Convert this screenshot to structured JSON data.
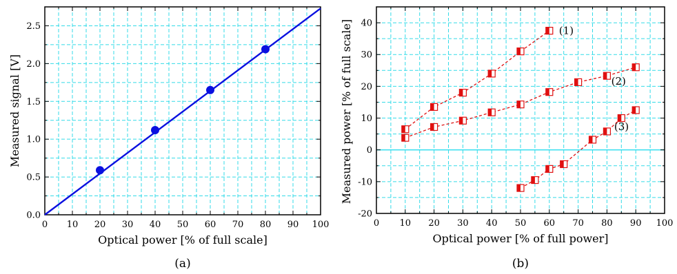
{
  "chart_data": [
    {
      "type": "scatter",
      "panel_label": "(a)",
      "xlabel": "Optical power [% of full scale]",
      "ylabel": "Measured signal [V]",
      "xlim": [
        0,
        100
      ],
      "ylim": [
        0,
        2.75
      ],
      "xticks": [
        "0",
        "10",
        "20",
        "30",
        "40",
        "50",
        "60",
        "70",
        "80",
        "90",
        "100"
      ],
      "yticks": [
        "0.0",
        "0.5",
        "1.0",
        "1.5",
        "2.0",
        "2.5"
      ],
      "grid": true,
      "series": [
        {
          "x": [
            20,
            40,
            60,
            80
          ],
          "y": [
            0.59,
            1.12,
            1.65,
            2.19
          ],
          "color": "#0a10e0",
          "marker": "circle"
        }
      ],
      "fit_line": {
        "x": [
          0,
          100
        ],
        "y": [
          0.0,
          2.73
        ],
        "color": "#0a10e0"
      }
    },
    {
      "type": "scatter",
      "panel_label": "(b)",
      "xlabel": "Optical power [% of full power]",
      "ylabel": "Measured power [% of full scale]",
      "xlim": [
        0,
        100
      ],
      "ylim": [
        -20,
        45
      ],
      "xticks": [
        "0",
        "10",
        "20",
        "30",
        "40",
        "50",
        "60",
        "70",
        "80",
        "90",
        "100"
      ],
      "yticks": [
        "-20",
        "-10",
        "0",
        "10",
        "20",
        "30",
        "40"
      ],
      "grid": true,
      "series": [
        {
          "name": "(1)",
          "x": [
            10,
            20,
            30,
            40,
            50,
            60
          ],
          "y": [
            6.5,
            13.5,
            18.0,
            24.0,
            31.0,
            37.5
          ],
          "color": "#e01010",
          "marker": "half-square"
        },
        {
          "name": "(2)",
          "x": [
            10,
            20,
            30,
            40,
            50,
            60,
            70,
            80,
            90
          ],
          "y": [
            3.8,
            7.2,
            9.2,
            11.8,
            14.3,
            18.2,
            21.3,
            23.3,
            26.0
          ],
          "color": "#e01010",
          "marker": "half-square"
        },
        {
          "name": "(3)",
          "x": [
            50,
            55,
            60,
            65,
            75,
            80,
            85,
            90
          ],
          "y": [
            -12.0,
            -9.5,
            -6.0,
            -4.5,
            3.2,
            5.8,
            10.0,
            12.5
          ],
          "color": "#e01010",
          "marker": "half-square"
        }
      ],
      "zero_line_color": "#40e0f0"
    }
  ]
}
